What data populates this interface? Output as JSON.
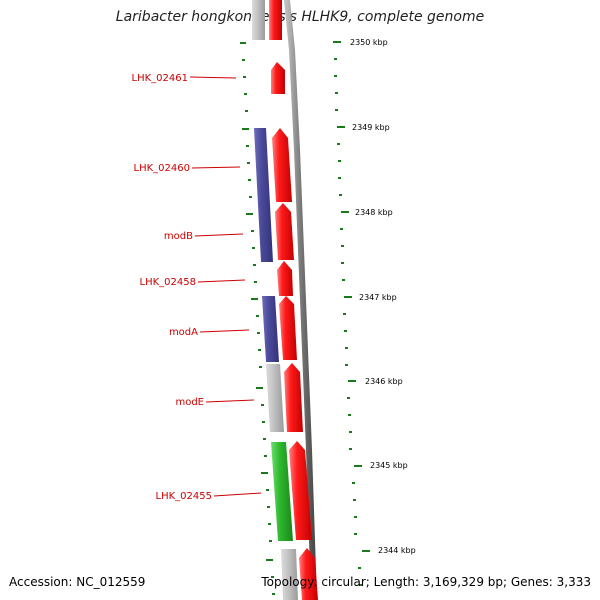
{
  "title": "Laribacter hongkongensis HLHK9, complete genome",
  "footer": {
    "accession": "Accession: NC_012559",
    "topology": "Topology: circular; Length: 3,169,329 bp; Genes: 3,333"
  },
  "colors": {
    "forward_cds": "#ee0000",
    "cog_blue": "#4b4a9a",
    "cog_grey": "#bdbdbd",
    "cog_green": "#2eb82e",
    "label": "#cc0000",
    "tick": "#1a7a1a"
  },
  "scale_ticks": [
    "2350 kbp",
    "2349 kbp",
    "2348 kbp",
    "2347 kbp",
    "2346 kbp",
    "2345 kbp",
    "2344 kbp"
  ],
  "gene_labels": [
    "LHK_02461",
    "LHK_02460",
    "modB",
    "LHK_02458",
    "modA",
    "modE",
    "LHK_02455"
  ]
}
